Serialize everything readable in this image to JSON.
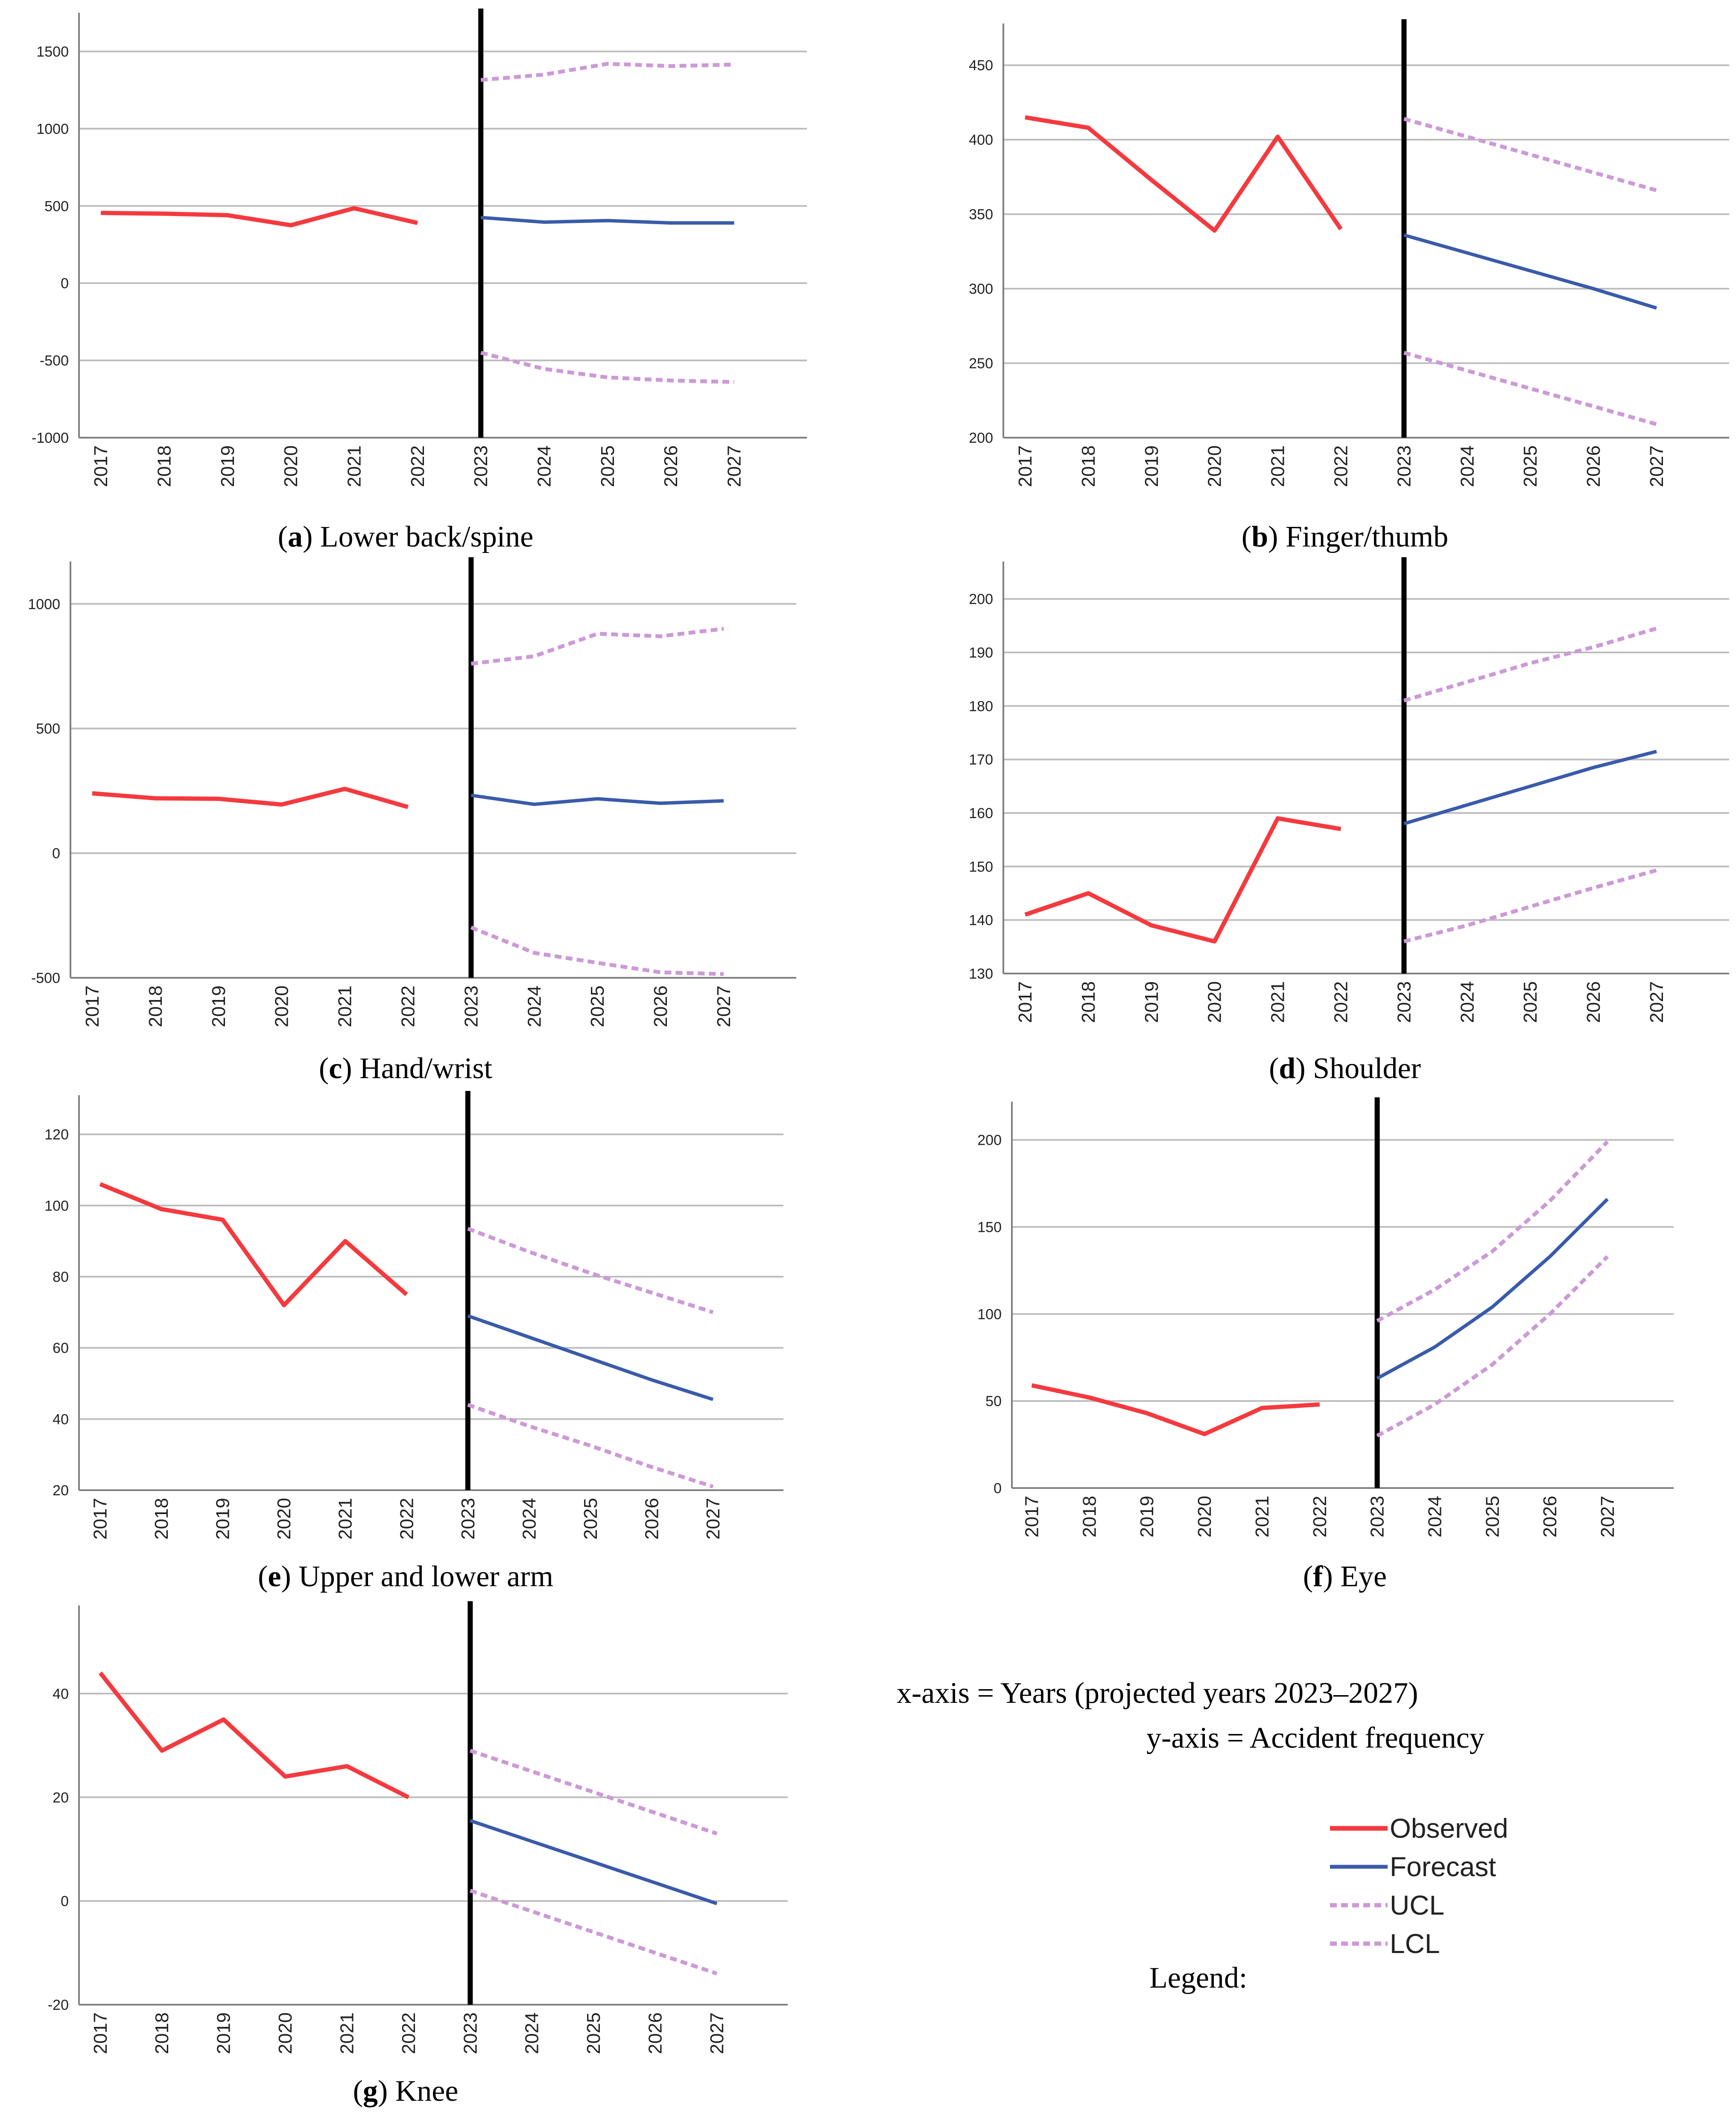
{
  "colors": {
    "observed": "#f43a3f",
    "forecast": "#3a5baa",
    "ucl": "#cc9ad6",
    "lcl": "#cc9ad6",
    "divider": "#000000",
    "grid": "#bdbdbd",
    "axis": "#7f7f7f"
  },
  "notes": {
    "x_axis": "x-axis = Years (projected years 2023–2027)",
    "y_axis": "y-axis = Accident frequency",
    "legend_title": "Legend:"
  },
  "legend": [
    {
      "key": "observed",
      "label": "Observed",
      "style": "solid"
    },
    {
      "key": "forecast",
      "label": "Forecast",
      "style": "solid"
    },
    {
      "key": "ucl",
      "label": "UCL",
      "style": "dotted"
    },
    {
      "key": "lcl",
      "label": "LCL",
      "style": "dotted"
    }
  ],
  "chart_data": [
    {
      "type": "line",
      "id": "a",
      "letter": "a",
      "title": "Lower back/spine",
      "x": [
        "2017",
        "2018",
        "2019",
        "2020",
        "2021",
        "2022",
        "2023",
        "2024",
        "2025",
        "2026",
        "2027"
      ],
      "ylim": [
        -1000,
        1750
      ],
      "yticks": [
        -1000,
        -500,
        0,
        500,
        1000,
        1500
      ],
      "divider_x": "2023",
      "series": [
        {
          "name": "Observed",
          "key": "observed",
          "values": [
            455,
            450,
            440,
            375,
            485,
            390,
            null,
            null,
            null,
            null,
            null
          ]
        },
        {
          "name": "Forecast",
          "key": "forecast",
          "values": [
            null,
            null,
            null,
            null,
            null,
            null,
            425,
            395,
            405,
            390,
            390
          ]
        },
        {
          "name": "UCL",
          "key": "ucl",
          "values": [
            null,
            null,
            null,
            null,
            null,
            null,
            1315,
            1350,
            1420,
            1405,
            1415
          ]
        },
        {
          "name": "LCL",
          "key": "lcl",
          "values": [
            null,
            null,
            null,
            null,
            null,
            null,
            -450,
            -555,
            -610,
            -630,
            -640
          ]
        }
      ]
    },
    {
      "type": "line",
      "id": "b",
      "letter": "b",
      "title": "Finger/thumb",
      "x": [
        "2017",
        "2018",
        "2019",
        "2020",
        "2021",
        "2022",
        "2023",
        "2024",
        "2025",
        "2026",
        "2027"
      ],
      "ylim": [
        200,
        478
      ],
      "yticks": [
        200,
        250,
        300,
        350,
        400,
        450
      ],
      "divider_x": "2023",
      "series": [
        {
          "name": "Observed",
          "key": "observed",
          "values": [
            415,
            408,
            373,
            339,
            402,
            340,
            null,
            null,
            null,
            null,
            null
          ]
        },
        {
          "name": "Forecast",
          "key": "forecast",
          "values": [
            null,
            null,
            null,
            null,
            null,
            null,
            336,
            324,
            312,
            300,
            287
          ]
        },
        {
          "name": "UCL",
          "key": "ucl",
          "values": [
            null,
            null,
            null,
            null,
            null,
            null,
            414,
            402,
            390,
            378,
            366
          ]
        },
        {
          "name": "LCL",
          "key": "lcl",
          "values": [
            null,
            null,
            null,
            null,
            null,
            null,
            257,
            245,
            233,
            221,
            209
          ]
        }
      ]
    },
    {
      "type": "line",
      "id": "c",
      "letter": "c",
      "title": "Hand/wrist",
      "x": [
        "2017",
        "2018",
        "2019",
        "2020",
        "2021",
        "2022",
        "2023",
        "2024",
        "2025",
        "2026",
        "2027"
      ],
      "ylim": [
        -500,
        1170
      ],
      "yticks": [
        -500,
        0,
        500,
        1000
      ],
      "divider_x": "2023",
      "series": [
        {
          "name": "Observed",
          "key": "observed",
          "values": [
            240,
            220,
            218,
            195,
            258,
            185,
            null,
            null,
            null,
            null,
            null
          ]
        },
        {
          "name": "Forecast",
          "key": "forecast",
          "values": [
            null,
            null,
            null,
            null,
            null,
            null,
            232,
            196,
            218,
            200,
            210
          ]
        },
        {
          "name": "UCL",
          "key": "ucl",
          "values": [
            null,
            null,
            null,
            null,
            null,
            null,
            760,
            790,
            880,
            870,
            900
          ]
        },
        {
          "name": "LCL",
          "key": "lcl",
          "values": [
            null,
            null,
            null,
            null,
            null,
            null,
            -298,
            -400,
            -440,
            -478,
            -485
          ]
        }
      ]
    },
    {
      "type": "line",
      "id": "d",
      "letter": "d",
      "title": "Shoulder",
      "x": [
        "2017",
        "2018",
        "2019",
        "2020",
        "2021",
        "2022",
        "2023",
        "2024",
        "2025",
        "2026",
        "2027"
      ],
      "ylim": [
        130,
        207
      ],
      "yticks": [
        130,
        140,
        150,
        160,
        170,
        180,
        190,
        200
      ],
      "divider_x": "2023",
      "series": [
        {
          "name": "Observed",
          "key": "observed",
          "values": [
            141,
            145,
            139,
            136,
            159,
            157,
            null,
            null,
            null,
            null,
            null
          ]
        },
        {
          "name": "Forecast",
          "key": "forecast",
          "values": [
            null,
            null,
            null,
            null,
            null,
            null,
            158,
            161.5,
            165,
            168.5,
            171.5
          ]
        },
        {
          "name": "UCL",
          "key": "ucl",
          "values": [
            null,
            null,
            null,
            null,
            null,
            null,
            181,
            184.5,
            188,
            191,
            194.5
          ]
        },
        {
          "name": "LCL",
          "key": "lcl",
          "values": [
            null,
            null,
            null,
            null,
            null,
            null,
            136,
            139,
            142.5,
            146,
            149.3
          ]
        }
      ]
    },
    {
      "type": "line",
      "id": "e",
      "letter": "e",
      "title": "Upper and lower arm",
      "x": [
        "2017",
        "2018",
        "2019",
        "2020",
        "2021",
        "2022",
        "2023",
        "2024",
        "2025",
        "2026",
        "2027"
      ],
      "ylim": [
        20,
        131
      ],
      "yticks": [
        20,
        40,
        60,
        80,
        100,
        120
      ],
      "divider_x": "2023",
      "series": [
        {
          "name": "Observed",
          "key": "observed",
          "values": [
            106,
            99,
            96,
            72,
            90,
            75,
            null,
            null,
            null,
            null,
            null
          ]
        },
        {
          "name": "Forecast",
          "key": "forecast",
          "values": [
            null,
            null,
            null,
            null,
            null,
            null,
            69,
            63,
            57,
            51,
            45.5
          ]
        },
        {
          "name": "UCL",
          "key": "ucl",
          "values": [
            null,
            null,
            null,
            null,
            null,
            null,
            93.5,
            87,
            81,
            75.5,
            70
          ]
        },
        {
          "name": "LCL",
          "key": "lcl",
          "values": [
            null,
            null,
            null,
            null,
            null,
            null,
            44,
            38,
            32.5,
            26.5,
            21
          ]
        }
      ]
    },
    {
      "type": "line",
      "id": "f",
      "letter": "f",
      "title": "Eye",
      "x": [
        "2017",
        "2018",
        "2019",
        "2020",
        "2021",
        "2022",
        "2023",
        "2024",
        "2025",
        "2026",
        "2027"
      ],
      "ylim": [
        0,
        222
      ],
      "yticks": [
        0,
        50,
        100,
        150,
        200
      ],
      "divider_x": "2023",
      "series": [
        {
          "name": "Observed",
          "key": "observed",
          "values": [
            59,
            52,
            43,
            31,
            46,
            48,
            null,
            null,
            null,
            null,
            null
          ]
        },
        {
          "name": "Forecast",
          "key": "forecast",
          "values": [
            null,
            null,
            null,
            null,
            null,
            null,
            63,
            81,
            104,
            133,
            166
          ]
        },
        {
          "name": "UCL",
          "key": "ucl",
          "values": [
            null,
            null,
            null,
            null,
            null,
            null,
            96,
            114,
            136,
            165,
            199
          ]
        },
        {
          "name": "LCL",
          "key": "lcl",
          "values": [
            null,
            null,
            null,
            null,
            null,
            null,
            30,
            48,
            71,
            100,
            133
          ]
        }
      ]
    },
    {
      "type": "line",
      "id": "g",
      "letter": "g",
      "title": "Knee",
      "x": [
        "2017",
        "2018",
        "2019",
        "2020",
        "2021",
        "2022",
        "2023",
        "2024",
        "2025",
        "2026",
        "2027"
      ],
      "ylim": [
        -20,
        57
      ],
      "yticks": [
        -20,
        0,
        20,
        40
      ],
      "divider_x": "2023",
      "series": [
        {
          "name": "Observed",
          "key": "observed",
          "values": [
            44,
            29,
            35,
            24,
            26,
            20,
            null,
            null,
            null,
            null,
            null
          ]
        },
        {
          "name": "Forecast",
          "key": "forecast",
          "values": [
            null,
            null,
            null,
            null,
            null,
            null,
            15.5,
            11.5,
            7.5,
            3.5,
            -0.5
          ]
        },
        {
          "name": "UCL",
          "key": "ucl",
          "values": [
            null,
            null,
            null,
            null,
            null,
            null,
            29,
            25,
            21,
            17,
            13
          ]
        },
        {
          "name": "LCL",
          "key": "lcl",
          "values": [
            null,
            null,
            null,
            null,
            null,
            null,
            2,
            -2,
            -6,
            -10,
            -14
          ]
        }
      ]
    }
  ]
}
